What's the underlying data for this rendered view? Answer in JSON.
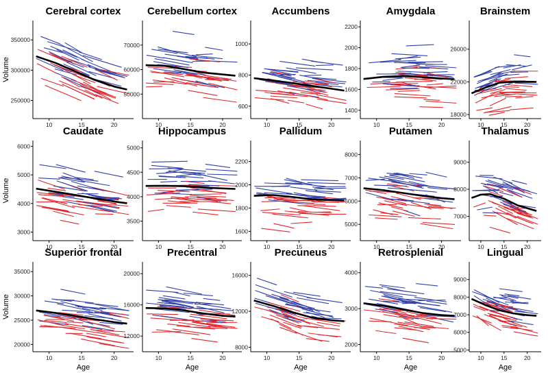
{
  "figure": {
    "xlabel": "Age",
    "ylabel": "Volume",
    "colors": {
      "male": "#2e3eaa",
      "female": "#e0262b",
      "mean": "#000000"
    }
  },
  "chart_data": [
    {
      "type": "line",
      "title": "Cerebral cortex",
      "xlim": [
        7.5,
        23
      ],
      "ylim": [
        220000,
        382000
      ],
      "xticks": [
        10,
        15,
        20
      ],
      "yticks": [
        250000,
        300000,
        350000
      ],
      "mean": {
        "x": [
          8,
          11,
          14,
          17,
          20,
          22
        ],
        "y": [
          323000,
          312000,
          298000,
          284000,
          273000,
          268000
        ]
      }
    },
    {
      "type": "line",
      "title": "Cerebellum cortex",
      "xlim": [
        7.5,
        23
      ],
      "ylim": [
        40000,
        80000
      ],
      "xticks": [
        10,
        15,
        20
      ],
      "yticks": [
        50000,
        60000,
        70000
      ],
      "mean": {
        "x": [
          8,
          11,
          14,
          17,
          20,
          22
        ],
        "y": [
          61800,
          61500,
          60200,
          58800,
          58000,
          57500
        ]
      }
    },
    {
      "type": "line",
      "title": "Accumbens",
      "xlim": [
        7.5,
        23
      ],
      "ylim": [
        520,
        1150
      ],
      "xticks": [
        10,
        15,
        20
      ],
      "yticks": [
        600,
        800,
        1000
      ],
      "mean": {
        "x": [
          8,
          11,
          14,
          17,
          20,
          22
        ],
        "y": [
          780,
          765,
          748,
          730,
          712,
          700
        ]
      }
    },
    {
      "type": "line",
      "title": "Amygdala",
      "xlim": [
        7.5,
        23
      ],
      "ylim": [
        1320,
        2260
      ],
      "xticks": [
        10,
        15,
        20
      ],
      "yticks": [
        1400,
        1600,
        1800,
        2000,
        2200
      ],
      "mean": {
        "x": [
          8,
          11,
          14,
          17,
          20,
          22
        ],
        "y": [
          1700,
          1720,
          1728,
          1718,
          1705,
          1698
        ]
      }
    },
    {
      "type": "line",
      "title": "Brainstem",
      "xlim": [
        7.5,
        23
      ],
      "ylim": [
        17500,
        29500
      ],
      "xticks": [
        10,
        15,
        20
      ],
      "yticks": [
        18000,
        22000,
        26000
      ],
      "mean": {
        "x": [
          8,
          11,
          14,
          17,
          20,
          22
        ],
        "y": [
          20600,
          21300,
          21900,
          22000,
          22000,
          22000
        ]
      }
    },
    {
      "type": "line",
      "title": "Caudate",
      "xlim": [
        7.5,
        23
      ],
      "ylim": [
        2700,
        6200
      ],
      "xticks": [
        10,
        15,
        20
      ],
      "yticks": [
        3000,
        4000,
        5000,
        6000
      ],
      "mean": {
        "x": [
          8,
          11,
          14,
          17,
          20,
          22
        ],
        "y": [
          4520,
          4410,
          4300,
          4180,
          4070,
          4010
        ]
      }
    },
    {
      "type": "line",
      "title": "Hippocampus",
      "xlim": [
        7.5,
        23
      ],
      "ylim": [
        3100,
        5150
      ],
      "xticks": [
        10,
        15,
        20
      ],
      "yticks": [
        3500,
        4000,
        4500,
        5000
      ],
      "mean": {
        "x": [
          8,
          11,
          14,
          17,
          20,
          22
        ],
        "y": [
          4220,
          4225,
          4215,
          4190,
          4170,
          4160
        ]
      }
    },
    {
      "type": "line",
      "title": "Pallidum",
      "xlim": [
        7.5,
        23
      ],
      "ylim": [
        1520,
        2380
      ],
      "xticks": [
        10,
        15,
        20
      ],
      "yticks": [
        1600,
        1800,
        2000,
        2200
      ],
      "mean": {
        "x": [
          8,
          11,
          14,
          17,
          20,
          22
        ],
        "y": [
          1905,
          1912,
          1895,
          1875,
          1868,
          1865
        ]
      }
    },
    {
      "type": "line",
      "title": "Putamen",
      "xlim": [
        7.5,
        23
      ],
      "ylim": [
        4300,
        8600
      ],
      "xticks": [
        10,
        15,
        20
      ],
      "yticks": [
        5000,
        6000,
        7000,
        8000
      ],
      "mean": {
        "x": [
          8,
          11,
          14,
          17,
          20,
          22
        ],
        "y": [
          6550,
          6470,
          6350,
          6230,
          6130,
          6080
        ]
      }
    },
    {
      "type": "line",
      "title": "Thalamus",
      "xlim": [
        7.5,
        23
      ],
      "ylim": [
        6100,
        9800
      ],
      "xticks": [
        10,
        15,
        20
      ],
      "yticks": [
        7000,
        8000,
        9000
      ],
      "mean": {
        "x": [
          8,
          10,
          12,
          15,
          18,
          22
        ],
        "y": [
          7680,
          7800,
          7820,
          7650,
          7400,
          7200
        ]
      }
    },
    {
      "type": "line",
      "title": "Superior frontal",
      "xlim": [
        7.5,
        23
      ],
      "ylim": [
        18500,
        37000
      ],
      "xticks": [
        10,
        15,
        20
      ],
      "yticks": [
        20000,
        25000,
        30000,
        35000
      ],
      "mean": {
        "x": [
          8,
          11,
          14,
          17,
          20,
          22
        ],
        "y": [
          27000,
          26500,
          25900,
          25200,
          24600,
          24300
        ]
      }
    },
    {
      "type": "line",
      "title": "Precentral",
      "xlim": [
        7.5,
        23
      ],
      "ylim": [
        10000,
        21500
      ],
      "xticks": [
        10,
        15,
        20
      ],
      "yticks": [
        12000,
        16000,
        20000
      ],
      "mean": {
        "x": [
          8,
          11,
          14,
          17,
          20,
          22
        ],
        "y": [
          15600,
          15550,
          15300,
          14900,
          14600,
          14500
        ]
      }
    },
    {
      "type": "line",
      "title": "Precuneus",
      "xlim": [
        7.5,
        23
      ],
      "ylim": [
        7500,
        17500
      ],
      "xticks": [
        10,
        15,
        20
      ],
      "yticks": [
        8000,
        12000,
        16000
      ],
      "mean": {
        "x": [
          8,
          11,
          14,
          17,
          20,
          22
        ],
        "y": [
          13200,
          12600,
          11900,
          11300,
          11000,
          10900
        ]
      }
    },
    {
      "type": "line",
      "title": "Retrosplenial",
      "xlim": [
        7.5,
        23
      ],
      "ylim": [
        1800,
        4300
      ],
      "xticks": [
        10,
        15,
        20
      ],
      "yticks": [
        2000,
        3000,
        4000
      ],
      "mean": {
        "x": [
          8,
          11,
          14,
          17,
          20,
          22
        ],
        "y": [
          3150,
          3080,
          2980,
          2880,
          2820,
          2800
        ]
      }
    },
    {
      "type": "line",
      "title": "Lingual",
      "xlim": [
        7.5,
        23
      ],
      "ylim": [
        4900,
        10000
      ],
      "xticks": [
        10,
        15,
        20
      ],
      "yticks": [
        5000,
        6000,
        7000,
        8000,
        9000
      ],
      "mean": {
        "x": [
          8,
          11,
          14,
          17,
          20,
          22
        ],
        "y": [
          7900,
          7550,
          7250,
          7080,
          6980,
          6940
        ]
      }
    }
  ]
}
